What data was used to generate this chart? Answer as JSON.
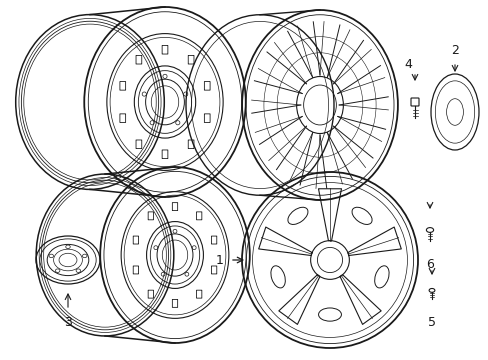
{
  "background_color": "#ffffff",
  "line_color": "#1a1a1a",
  "line_width": 1.0,
  "fig_w": 4.89,
  "fig_h": 3.6,
  "dpi": 100
}
